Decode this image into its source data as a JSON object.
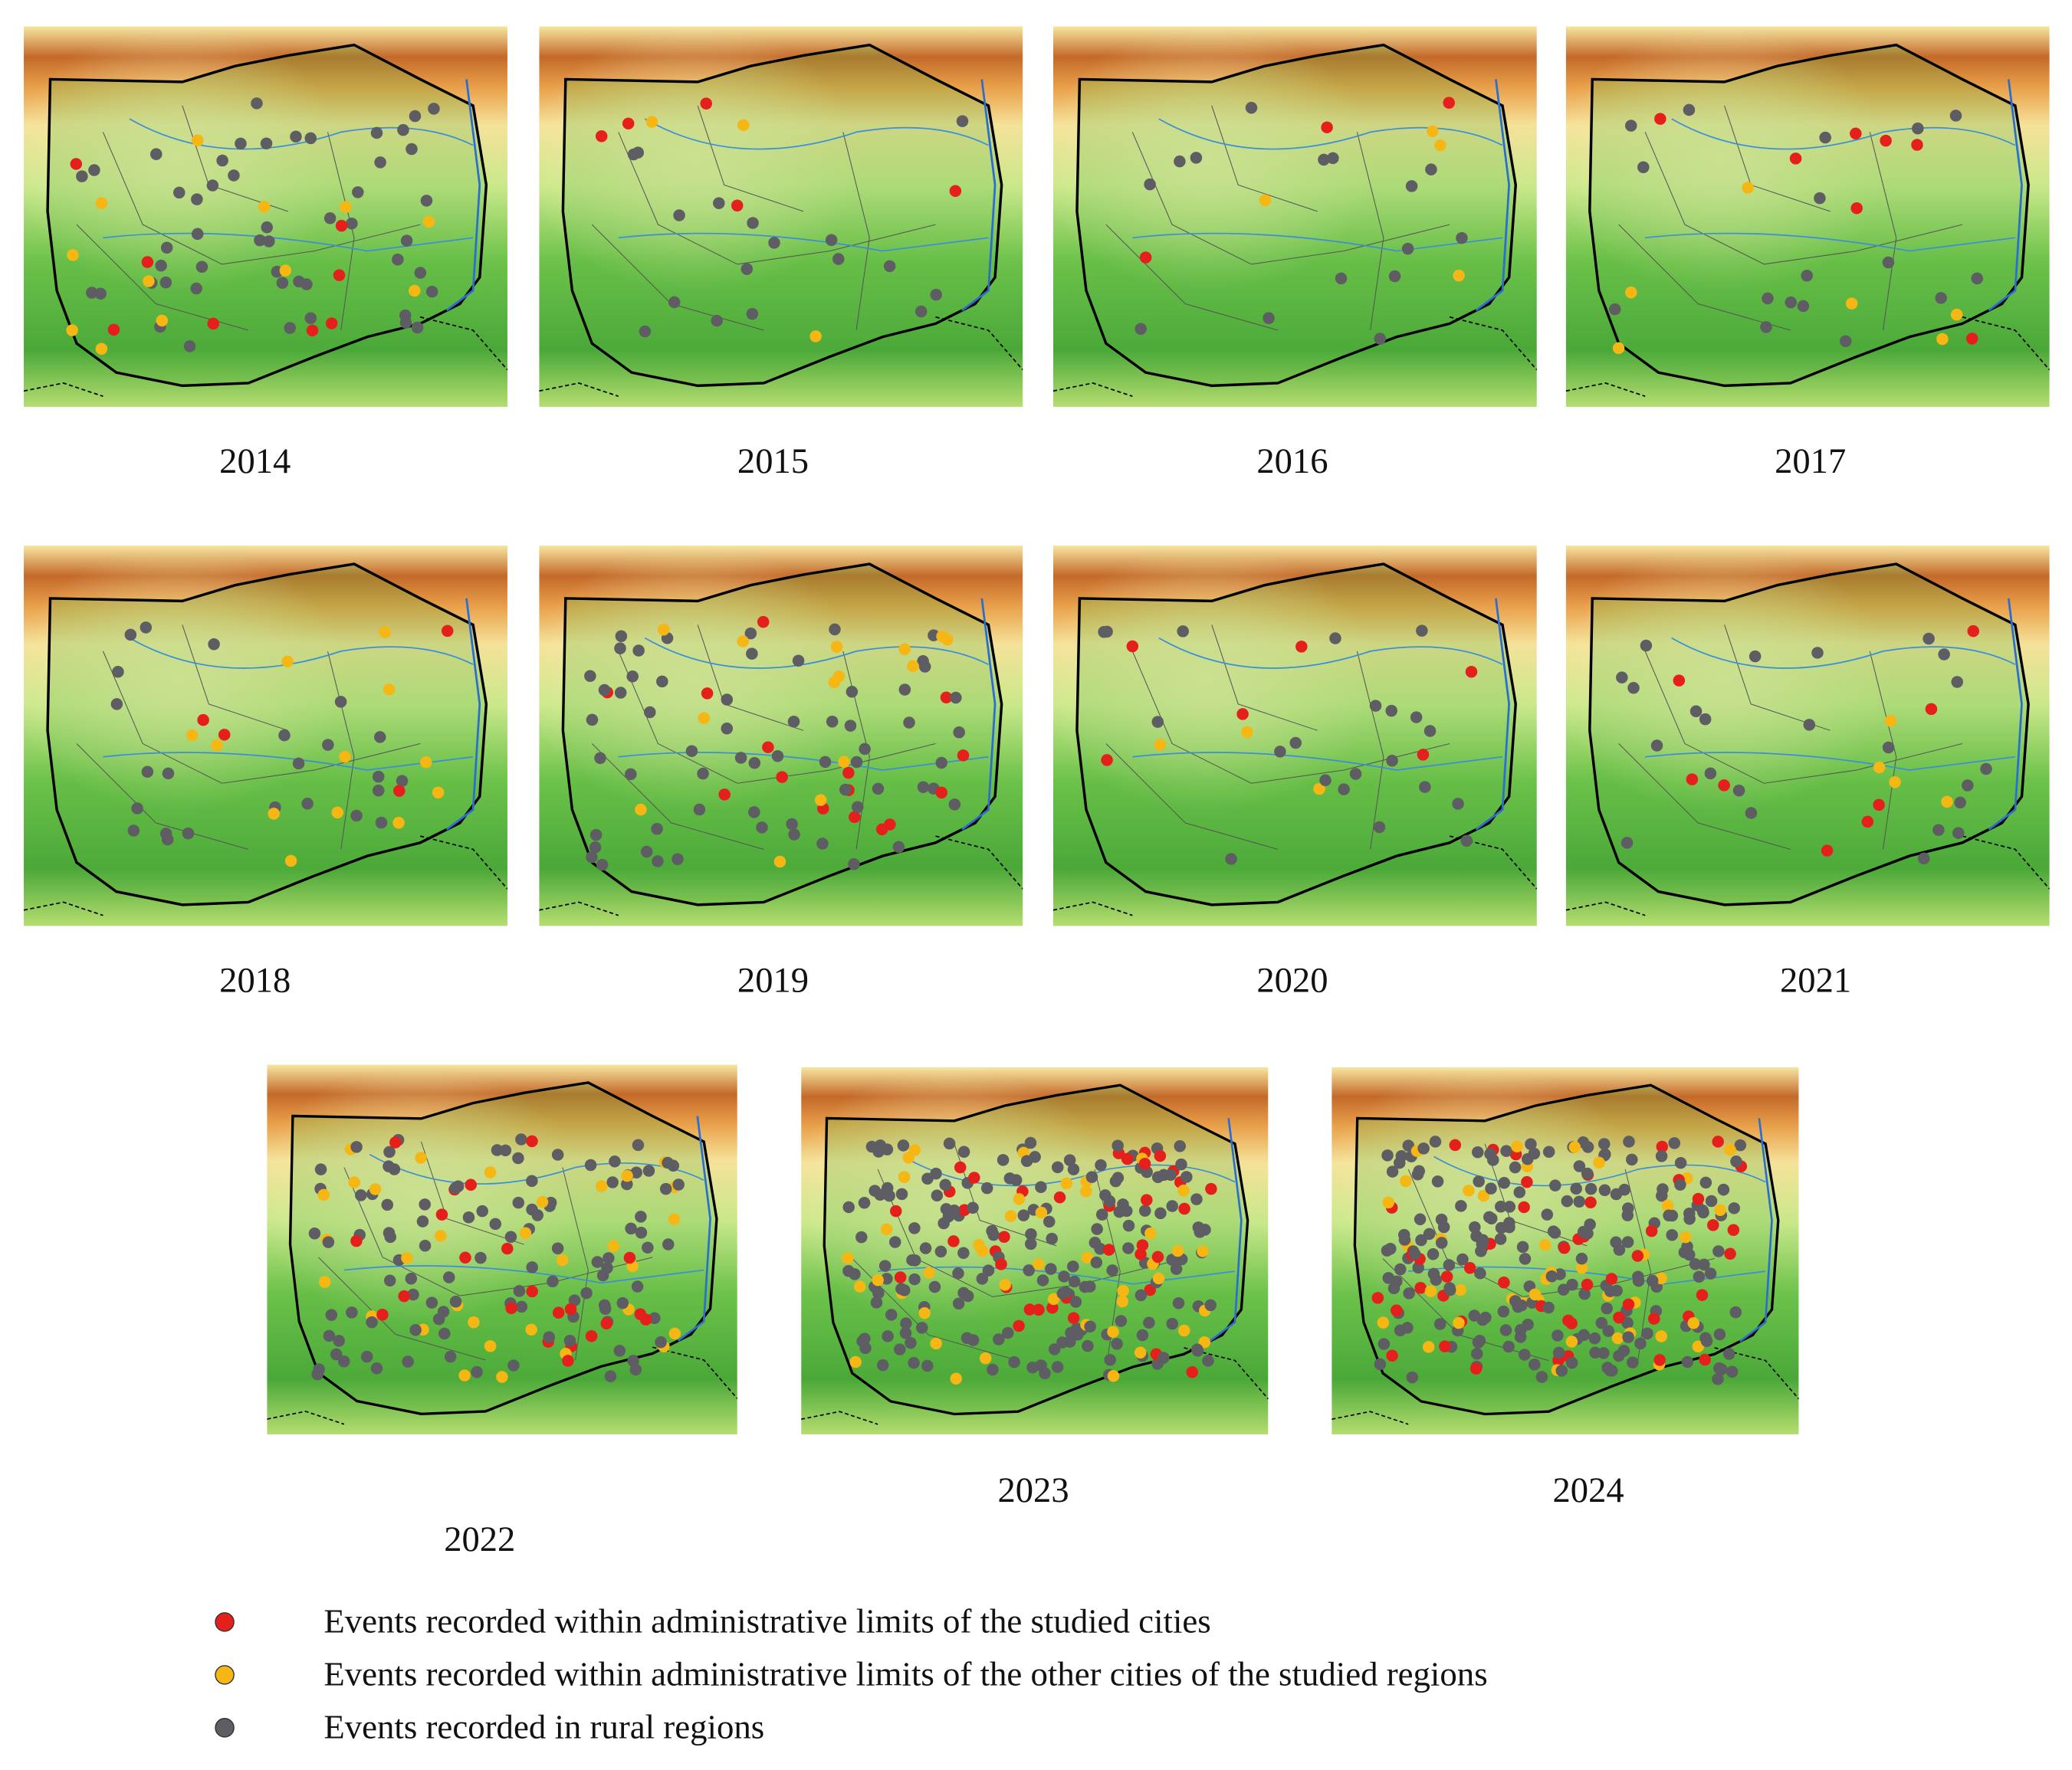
{
  "maps": [
    {
      "year": "2014"
    },
    {
      "year": "2015"
    },
    {
      "year": "2016"
    },
    {
      "year": "2017"
    },
    {
      "year": "2018"
    },
    {
      "year": "2019"
    },
    {
      "year": "2020"
    },
    {
      "year": "2021"
    },
    {
      "year": "2022"
    },
    {
      "year": "2023"
    },
    {
      "year": "2024"
    }
  ],
  "legend": [
    {
      "label": "Events recorded within administrative limits of the studied cities",
      "color": "#e5201c"
    },
    {
      "label": "Events recorded within administrative limits of the other cities of the studied regions",
      "color": "#f6b613"
    },
    {
      "label": "Events recorded in rural regions",
      "color": "#5d5d63"
    }
  ]
}
